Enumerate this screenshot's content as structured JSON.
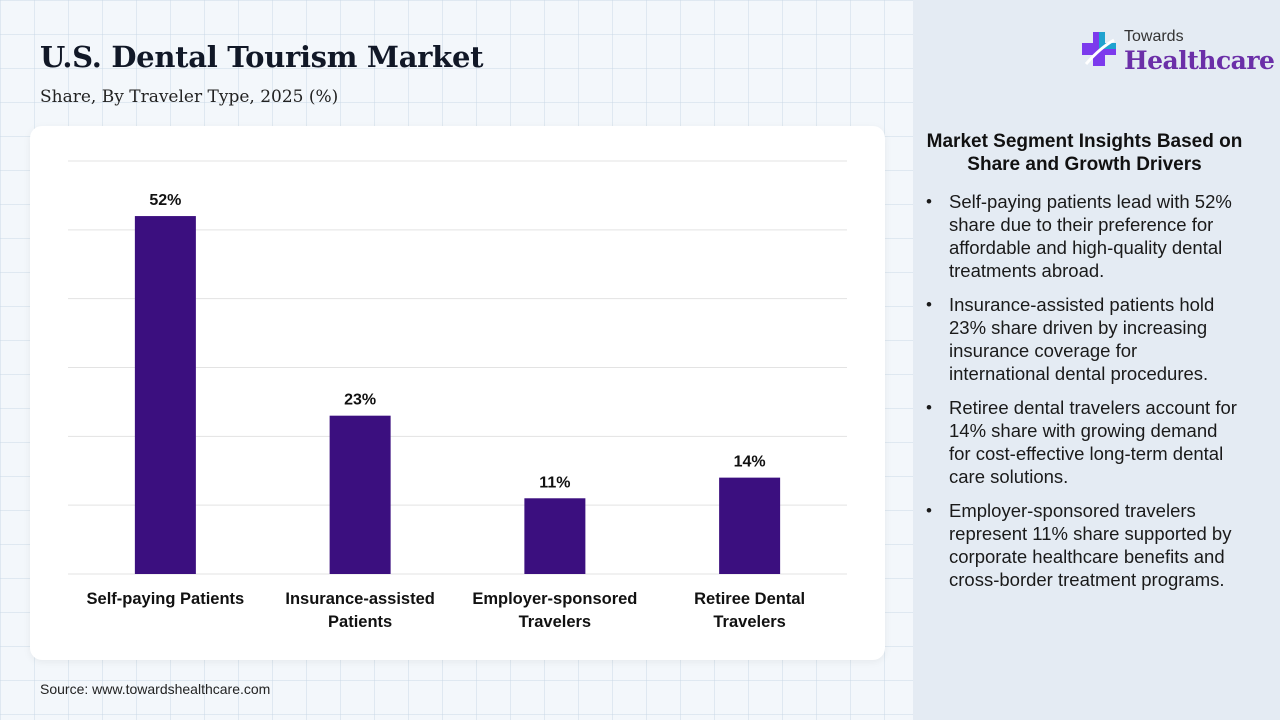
{
  "header": {
    "title": "U.S. Dental Tourism Market",
    "subtitle": "Share, By Traveler Type, 2025 (%)"
  },
  "chart_data": {
    "type": "bar",
    "categories": [
      "Self-paying Patients",
      "Insurance-assisted Patients",
      "Employer-sponsored Travelers",
      "Retiree Dental Travelers"
    ],
    "category_lines": [
      [
        "Self-paying Patients"
      ],
      [
        "Insurance-assisted",
        "Patients"
      ],
      [
        "Employer-sponsored",
        "Travelers"
      ],
      [
        "Retiree Dental",
        "Travelers"
      ]
    ],
    "values": [
      52,
      23,
      11,
      14
    ],
    "data_labels": [
      "52%",
      "23%",
      "11%",
      "14%"
    ],
    "ylim": [
      0,
      60
    ],
    "grid": true,
    "bar_color": "#3b0f7f"
  },
  "source": "Source: www.towardshealthcare.com",
  "logo": {
    "top_text": "Towards",
    "bottom_text": "Healthcare"
  },
  "insights": {
    "title": "Market Segment Insights Based on Share and Growth Drivers",
    "items": [
      "Self-paying patients lead with 52% share due to their preference for affordable and high-quality dental treatments abroad.",
      "Insurance-assisted patients hold 23% share driven by increasing insurance coverage for international dental procedures.",
      "Retiree dental travelers account for 14% share with growing demand for cost-effective long-term dental care solutions.",
      "Employer-sponsored travelers represent 11% share supported by corporate healthcare benefits and cross-border treatment programs."
    ]
  }
}
